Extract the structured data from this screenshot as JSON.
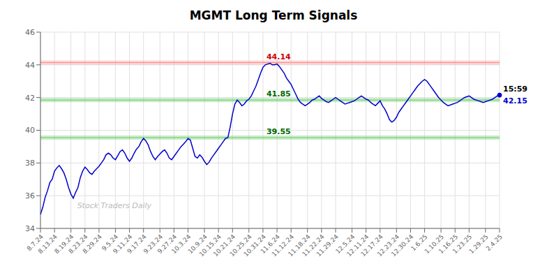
{
  "chart_data": {
    "type": "line",
    "title": "MGMT Long Term Signals",
    "categories": [
      "8.7.24",
      null,
      null,
      null,
      null,
      null,
      "8.13.24",
      null,
      null,
      null,
      null,
      null,
      null,
      "8.19.24",
      null,
      null,
      null,
      null,
      null,
      "8.23.24",
      null,
      null,
      null,
      null,
      null,
      "8.29.24",
      null,
      null,
      null,
      null,
      null,
      null,
      "9.5.24",
      null,
      null,
      null,
      null,
      null,
      "9.11.24",
      null,
      null,
      null,
      null,
      null,
      "9.17.24",
      null,
      null,
      null,
      null,
      null,
      null,
      "9.23.24",
      null,
      null,
      null,
      null,
      null,
      "9.27.24",
      null,
      null,
      null,
      null,
      null,
      "10.3.24",
      null,
      null,
      null,
      null,
      null,
      null,
      "10.9.24",
      null,
      null,
      null,
      null,
      null,
      "10.15.24",
      null,
      null,
      null,
      null,
      null,
      "10.21.24",
      null,
      null,
      null,
      null,
      null,
      null,
      "10.25.24",
      null,
      null,
      null,
      null,
      null,
      "10.31.24",
      null,
      null,
      null,
      null,
      null,
      "11.6.24",
      null,
      null,
      null,
      null,
      null,
      "11.12.24",
      null,
      null,
      null,
      null,
      null,
      null,
      "11.18.24",
      null,
      null,
      null,
      null,
      null,
      "11.22.24",
      null,
      null,
      null,
      null,
      null,
      "11.29.24",
      null,
      null,
      null,
      null,
      null,
      null,
      "12.5.24",
      null,
      null,
      null,
      null,
      null,
      "12.11.24",
      null,
      null,
      null,
      null,
      null,
      "12.17.24",
      null,
      null,
      null,
      null,
      null,
      null,
      "12.23.24",
      null,
      null,
      null,
      null,
      null,
      "12.30.24",
      null,
      null,
      null,
      null,
      null,
      "1.6.25",
      null,
      null,
      null,
      null,
      null,
      null,
      "1.10.25",
      null,
      null,
      null,
      null,
      null,
      "1.16.25",
      null,
      null,
      null,
      null,
      null,
      "1.23.25",
      null,
      null,
      null,
      null,
      null,
      null,
      "1.29.25",
      null,
      null,
      null,
      null,
      null,
      "2.4.25"
    ],
    "values": [
      34.85,
      35.3,
      35.9,
      36.3,
      36.8,
      37.0,
      37.5,
      37.7,
      37.85,
      37.65,
      37.4,
      37.0,
      36.5,
      36.1,
      35.85,
      36.2,
      36.5,
      37.1,
      37.5,
      37.75,
      37.6,
      37.4,
      37.3,
      37.5,
      37.65,
      37.8,
      38.0,
      38.2,
      38.5,
      38.6,
      38.5,
      38.3,
      38.2,
      38.45,
      38.7,
      38.8,
      38.6,
      38.3,
      38.1,
      38.3,
      38.6,
      38.85,
      39.0,
      39.3,
      39.5,
      39.35,
      39.1,
      38.7,
      38.4,
      38.2,
      38.4,
      38.55,
      38.7,
      38.8,
      38.6,
      38.3,
      38.2,
      38.4,
      38.6,
      38.8,
      39.0,
      39.15,
      39.3,
      39.5,
      39.4,
      38.9,
      38.4,
      38.3,
      38.5,
      38.35,
      38.1,
      37.9,
      38.05,
      38.3,
      38.5,
      38.7,
      38.9,
      39.1,
      39.3,
      39.5,
      39.55,
      40.2,
      41.0,
      41.6,
      41.85,
      41.7,
      41.5,
      41.6,
      41.8,
      41.9,
      42.1,
      42.4,
      42.7,
      43.1,
      43.5,
      43.85,
      44.0,
      44.05,
      44.1,
      44.0,
      44.0,
      44.05,
      43.9,
      43.7,
      43.5,
      43.2,
      43.0,
      42.8,
      42.5,
      42.2,
      41.9,
      41.7,
      41.6,
      41.5,
      41.6,
      41.7,
      41.85,
      41.9,
      42.0,
      42.1,
      41.95,
      41.85,
      41.75,
      41.7,
      41.8,
      41.9,
      42.0,
      41.9,
      41.8,
      41.7,
      41.6,
      41.65,
      41.7,
      41.75,
      41.8,
      41.9,
      42.0,
      42.1,
      42.0,
      41.9,
      41.85,
      41.7,
      41.6,
      41.5,
      41.65,
      41.8,
      41.5,
      41.3,
      41.0,
      40.65,
      40.5,
      40.6,
      40.8,
      41.1,
      41.3,
      41.5,
      41.7,
      41.9,
      42.1,
      42.3,
      42.5,
      42.7,
      42.85,
      43.0,
      43.1,
      43.0,
      42.8,
      42.6,
      42.4,
      42.2,
      42.0,
      41.85,
      41.7,
      41.6,
      41.5,
      41.55,
      41.6,
      41.65,
      41.7,
      41.8,
      41.9,
      42.0,
      42.05,
      42.1,
      42.0,
      41.9,
      41.85,
      41.8,
      41.75,
      41.7,
      41.75,
      41.8,
      41.85,
      41.9,
      42.0,
      42.1,
      42.15
    ],
    "color": "#0000cc",
    "ylim": [
      34,
      46
    ],
    "yticks": [
      34,
      36,
      38,
      40,
      42,
      44,
      46
    ],
    "grid": true,
    "reference_lines": [
      {
        "y": 44.14,
        "color": "#ff8888"
      },
      {
        "y": 41.85,
        "color": "#66cc66"
      },
      {
        "y": 39.55,
        "color": "#66cc66"
      }
    ],
    "annotations": [
      {
        "text": "44.14",
        "x": "10.31.24",
        "y": 44.14,
        "color": "#cc0000"
      },
      {
        "text": "41.85",
        "x": "10.31.24",
        "y": 41.85,
        "color": "#006600"
      },
      {
        "text": "39.55",
        "x": "10.31.24",
        "y": 39.55,
        "color": "#006600"
      },
      {
        "text": "15:59",
        "x": "2.4.25",
        "y": 42.15,
        "color": "#000000"
      },
      {
        "text": "42.15",
        "x": "2.4.25",
        "y": 42.15,
        "color": "#0000cc"
      },
      {
        "text": "Stock Traders Daily",
        "color": "#bbbbbb"
      }
    ]
  }
}
